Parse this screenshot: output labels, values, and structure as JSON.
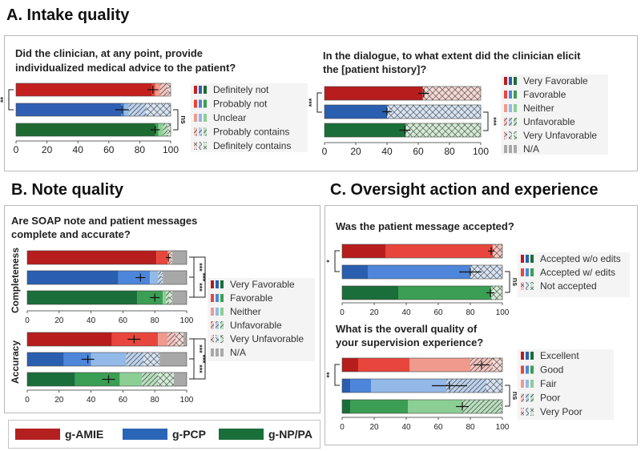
{
  "colors": {
    "amie": "#b41f1f",
    "pcp": "#2a66b8",
    "nppa": "#1a6e3a"
  },
  "sections": {
    "A": {
      "title": "A. Intake quality"
    },
    "B": {
      "title": "B. Note quality"
    },
    "C": {
      "title": "C. Oversight action and experience"
    }
  },
  "model_legend": [
    {
      "name": "g-AMIE",
      "color": "#b41f1f"
    },
    {
      "name": "g-PCP",
      "color": "#2a66b8"
    },
    {
      "name": "g-NP/PA",
      "color": "#1a6e3a"
    }
  ],
  "chart_data": [
    {
      "id": "advice",
      "type": "bar",
      "orientation": "horizontal",
      "stacked": true,
      "title_lines": [
        "Did the clinician, at any point, provide",
        "individualized medical advice to the patient?"
      ],
      "xlim": [
        0,
        100
      ],
      "xticks": [
        "0",
        "20",
        "40",
        "60",
        "80",
        "100"
      ],
      "legend_items": [
        "Definitely not",
        "Probably not",
        "Unclear",
        "Probably contains",
        "Definitely contains"
      ],
      "legend_patterns": [
        "solid",
        "solid",
        "solid",
        "diag",
        "chev"
      ],
      "series_colors": {
        "amie": [
          "#c42020",
          "#e8463c",
          "#f09a8e",
          "#f6c4bd",
          "#f7d8d3"
        ],
        "pcp": [
          "#2f5fb4",
          "#4d86da",
          "#93b9e8",
          "#bcd3f0",
          "#d6e4f5"
        ],
        "nppa": [
          "#1d6b33",
          "#3b9e54",
          "#8ccf95",
          "#b8e0bd",
          "#d3ecd5"
        ]
      },
      "bars": [
        {
          "model": "amie",
          "values": [
            88,
            2,
            3,
            5,
            2
          ],
          "ci": [
            85,
            92
          ]
        },
        {
          "model": "pcp",
          "values": [
            68,
            2,
            3,
            11,
            16
          ],
          "ci": [
            64,
            73
          ]
        },
        {
          "model": "nppa",
          "values": [
            90,
            2,
            3,
            3,
            2
          ],
          "ci": [
            87,
            93
          ]
        }
      ],
      "sig": [
        {
          "from": 0,
          "to": 1,
          "label": "**",
          "side": "left"
        },
        {
          "from": 1,
          "to": 2,
          "label": "ns",
          "side": "right"
        }
      ]
    },
    {
      "id": "history",
      "type": "bar",
      "orientation": "horizontal",
      "stacked": true,
      "title_lines": [
        "In the dialogue, to what extent did the clinician elicit",
        "the [patient history]?"
      ],
      "xlim": [
        0,
        100
      ],
      "xticks": [
        "0",
        "20",
        "40",
        "60",
        "80",
        "100"
      ],
      "legend_items": [
        "Very Favorable",
        "Favorable",
        "Neither",
        "Unfavorable",
        "Very Unfavorable",
        "N/A"
      ],
      "legend_patterns": [
        "solid",
        "solid",
        "solid",
        "diag",
        "chev",
        "solid"
      ],
      "series_colors": {
        "amie": [
          "#b71d1d",
          "#e8463c",
          "#f09a8e",
          "#f6c4bd",
          "#f7d8d3",
          "#a8a8a8"
        ],
        "pcp": [
          "#2a5fb0",
          "#4d86da",
          "#93b9e8",
          "#bcd3f0",
          "#d6e4f5",
          "#a8a8a8"
        ],
        "nppa": [
          "#1a6e3a",
          "#3b9e54",
          "#8ccf95",
          "#b8e0bd",
          "#d3ecd5",
          "#a8a8a8"
        ]
      },
      "bars": [
        {
          "model": "amie",
          "values": [
            63,
            0,
            0,
            0,
            37,
            0
          ],
          "ci": [
            60,
            67
          ]
        },
        {
          "model": "pcp",
          "values": [
            40,
            0,
            0,
            0,
            60,
            0
          ],
          "ci": [
            37,
            43
          ]
        },
        {
          "model": "nppa",
          "values": [
            52,
            0,
            0,
            0,
            48,
            0
          ],
          "ci": [
            48,
            55
          ]
        }
      ],
      "sig": [
        {
          "from": 0,
          "to": 1,
          "label": "***",
          "side": "left"
        },
        {
          "from": 1,
          "to": 2,
          "label": "***",
          "side": "right"
        }
      ]
    },
    {
      "id": "soap",
      "type": "bar",
      "orientation": "horizontal",
      "stacked": true,
      "title_lines": [
        "Are SOAP note and patient messages",
        "complete and accurate?"
      ],
      "xlim": [
        0,
        100
      ],
      "xticks": [
        "0",
        "20",
        "40",
        "60",
        "80",
        "100"
      ],
      "legend_items": [
        "Very Favorable",
        "Favorable",
        "Neither",
        "Unfavorable",
        "Very Unfavorable",
        "N/A"
      ],
      "legend_patterns": [
        "solid",
        "solid",
        "solid",
        "diag",
        "chev",
        "solid"
      ],
      "series_colors": {
        "amie": [
          "#b71d1d",
          "#e8463c",
          "#f09a8e",
          "#f6c4bd",
          "#f7d8d3",
          "#a8a8a8"
        ],
        "pcp": [
          "#2a5fb0",
          "#4d86da",
          "#93b9e8",
          "#bcd3f0",
          "#d6e4f5",
          "#a8a8a8"
        ],
        "nppa": [
          "#1a6e3a",
          "#3b9e54",
          "#8ccf95",
          "#b8e0bd",
          "#d3ecd5",
          "#a8a8a8"
        ]
      },
      "groups": [
        {
          "label": "Completeness",
          "bars": [
            {
              "model": "amie",
              "values": [
                81,
                7,
                1,
                1,
                1,
                9
              ],
              "ci": [
                87,
                90
              ]
            },
            {
              "model": "pcp",
              "values": [
                57,
                20,
                5,
                2,
                1,
                15
              ],
              "ci": [
                68,
                74
              ]
            },
            {
              "model": "nppa",
              "values": [
                69,
                16,
                2,
                2,
                2,
                9
              ],
              "ci": [
                77,
                83
              ]
            }
          ],
          "sig": [
            {
              "from": 0,
              "to": 1,
              "label": "***"
            },
            {
              "from": 1,
              "to": 2,
              "label": "***"
            },
            {
              "from": 0,
              "to": 2,
              "label": "***"
            }
          ]
        },
        {
          "label": "Accuracy",
          "bars": [
            {
              "model": "amie",
              "values": [
                53,
                29,
                6,
                5,
                5,
                2
              ],
              "ci": [
                63,
                71
              ]
            },
            {
              "model": "pcp",
              "values": [
                23,
                17,
                22,
                11,
                10,
                17
              ],
              "ci": [
                34,
                42
              ]
            },
            {
              "model": "nppa",
              "values": [
                30,
                28,
                14,
                10,
                10,
                8
              ],
              "ci": [
                47,
                55
              ]
            }
          ],
          "sig": [
            {
              "from": 0,
              "to": 1,
              "label": "***"
            },
            {
              "from": 1,
              "to": 2,
              "label": "***"
            },
            {
              "from": 0,
              "to": 2,
              "label": "***"
            }
          ]
        }
      ]
    },
    {
      "id": "accepted",
      "type": "bar",
      "orientation": "horizontal",
      "stacked": true,
      "title_lines": [
        "Was the patient message accepted?"
      ],
      "xlim": [
        0,
        100
      ],
      "xticks": [
        "0",
        "20",
        "40",
        "60",
        "80",
        "100"
      ],
      "legend_items": [
        "Accepted w/o edits",
        "Accepted w/ edits",
        "Not accepted"
      ],
      "legend_patterns": [
        "solid",
        "solid",
        "chev"
      ],
      "series_colors": {
        "amie": [
          "#b71d1d",
          "#e8463c",
          "#f6c4bd"
        ],
        "pcp": [
          "#2a5fb0",
          "#4d86da",
          "#d6e4f5"
        ],
        "nppa": [
          "#1a6e3a",
          "#3b9e54",
          "#d3ecd5"
        ]
      },
      "bars": [
        {
          "model": "amie",
          "values": [
            27,
            67,
            6
          ],
          "ci": [
            91,
            95
          ]
        },
        {
          "model": "pcp",
          "values": [
            16,
            64,
            20
          ],
          "ci": [
            73,
            87
          ]
        },
        {
          "model": "nppa",
          "values": [
            35,
            58,
            7
          ],
          "ci": [
            90,
            95
          ]
        }
      ],
      "sig": [
        {
          "from": 0,
          "to": 1,
          "label": "*",
          "side": "left"
        },
        {
          "from": 1,
          "to": 2,
          "label": "ns",
          "side": "right"
        }
      ]
    },
    {
      "id": "supervision",
      "type": "bar",
      "orientation": "horizontal",
      "stacked": true,
      "title_lines": [
        "What is the overall quality of",
        "your supervision experience?"
      ],
      "xlim": [
        0,
        100
      ],
      "xticks": [
        "0",
        "20",
        "40",
        "60",
        "80",
        "100"
      ],
      "legend_items": [
        "Excellent",
        "Good",
        "Fair",
        "Poor",
        "Very Poor"
      ],
      "legend_patterns": [
        "solid",
        "solid",
        "solid",
        "diag",
        "chev"
      ],
      "series_colors": {
        "amie": [
          "#b71d1d",
          "#e8463c",
          "#f09a8e",
          "#f6c4bd",
          "#f7d8d3"
        ],
        "pcp": [
          "#2a5fb0",
          "#4d86da",
          "#93b9e8",
          "#bcd3f0",
          "#d6e4f5"
        ],
        "nppa": [
          "#1a6e3a",
          "#3b9e54",
          "#8ccf95",
          "#b8e0bd",
          "#d3ecd5"
        ]
      },
      "bars": [
        {
          "model": "amie",
          "values": [
            10,
            32,
            38,
            14,
            6
          ],
          "ci": [
            82,
            92
          ]
        },
        {
          "model": "pcp",
          "values": [
            5,
            13,
            47,
            25,
            10
          ],
          "ci": [
            56,
            78
          ]
        },
        {
          "model": "nppa",
          "values": [
            5,
            36,
            34,
            24,
            1
          ],
          "ci": [
            71,
            79
          ]
        }
      ],
      "sig": [
        {
          "from": 0,
          "to": 1,
          "label": "**",
          "side": "left"
        },
        {
          "from": 1,
          "to": 2,
          "label": "ns",
          "side": "right"
        }
      ]
    }
  ]
}
